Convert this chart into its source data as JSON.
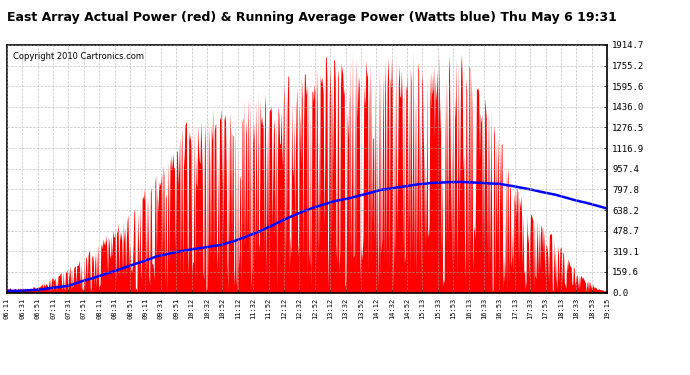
{
  "title": "East Array Actual Power (red) & Running Average Power (Watts blue) Thu May 6 19:31",
  "copyright": "Copyright 2010 Cartronics.com",
  "y_max": 1914.7,
  "y_min": 0.0,
  "y_ticks": [
    0.0,
    159.6,
    319.1,
    478.7,
    638.2,
    797.8,
    957.4,
    1116.9,
    1276.5,
    1436.0,
    1595.6,
    1755.2,
    1914.7
  ],
  "x_labels": [
    "06:11",
    "06:31",
    "06:51",
    "07:11",
    "07:31",
    "07:51",
    "08:11",
    "08:31",
    "08:51",
    "09:11",
    "09:31",
    "09:51",
    "10:12",
    "10:32",
    "10:52",
    "11:12",
    "11:32",
    "11:52",
    "12:12",
    "12:32",
    "12:52",
    "13:12",
    "13:32",
    "13:52",
    "14:12",
    "14:32",
    "14:52",
    "15:13",
    "15:33",
    "15:53",
    "16:13",
    "16:33",
    "16:53",
    "17:13",
    "17:33",
    "17:53",
    "18:13",
    "18:33",
    "18:53",
    "19:15"
  ],
  "bg_color": "#ffffff",
  "plot_bg_color": "#ffffff",
  "grid_color": "#aaaaaa",
  "actual_color": "#ff0000",
  "average_color": "#0000ff",
  "border_color": "#000000",
  "title_fontsize": 9,
  "copyright_fontsize": 6,
  "avg_x": [
    0.0,
    0.05,
    0.1,
    0.15,
    0.2,
    0.25,
    0.3,
    0.35,
    0.38,
    0.42,
    0.46,
    0.5,
    0.54,
    0.58,
    0.62,
    0.66,
    0.7,
    0.74,
    0.78,
    0.82,
    0.86,
    0.9,
    0.95,
    1.0
  ],
  "avg_y": [
    10,
    20,
    50,
    120,
    200,
    280,
    330,
    360,
    400,
    470,
    560,
    640,
    700,
    740,
    790,
    820,
    845,
    855,
    850,
    840,
    810,
    770,
    710,
    650
  ]
}
